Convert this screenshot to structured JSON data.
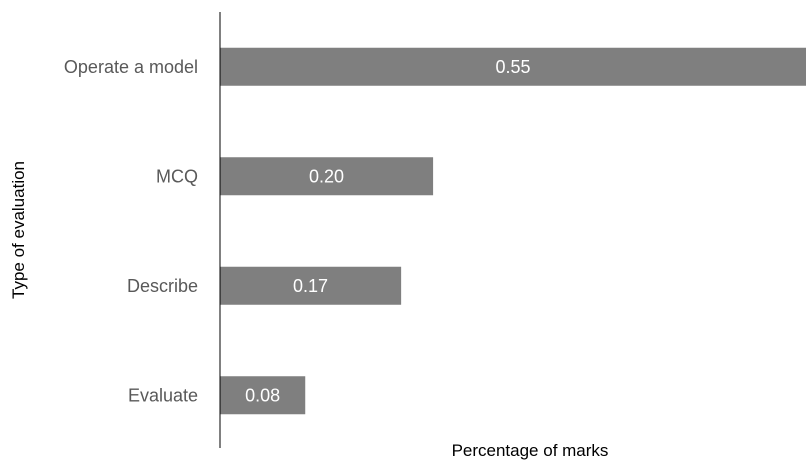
{
  "chart_data": {
    "type": "bar",
    "orientation": "horizontal",
    "categories": [
      "Operate a model",
      "MCQ",
      "Describe",
      "Evaluate"
    ],
    "values": [
      0.55,
      0.2,
      0.17,
      0.08
    ],
    "data_labels": [
      "0.55",
      "0.20",
      "0.17",
      "0.08"
    ],
    "title": "",
    "xlabel": "Percentage of marks",
    "ylabel": "Type of evaluation",
    "xlim": [
      0,
      0.55
    ],
    "grid": false,
    "legend": "none",
    "bar_color": "#7f7f7f",
    "axis_color": "#000000",
    "label_color": "#595959"
  }
}
